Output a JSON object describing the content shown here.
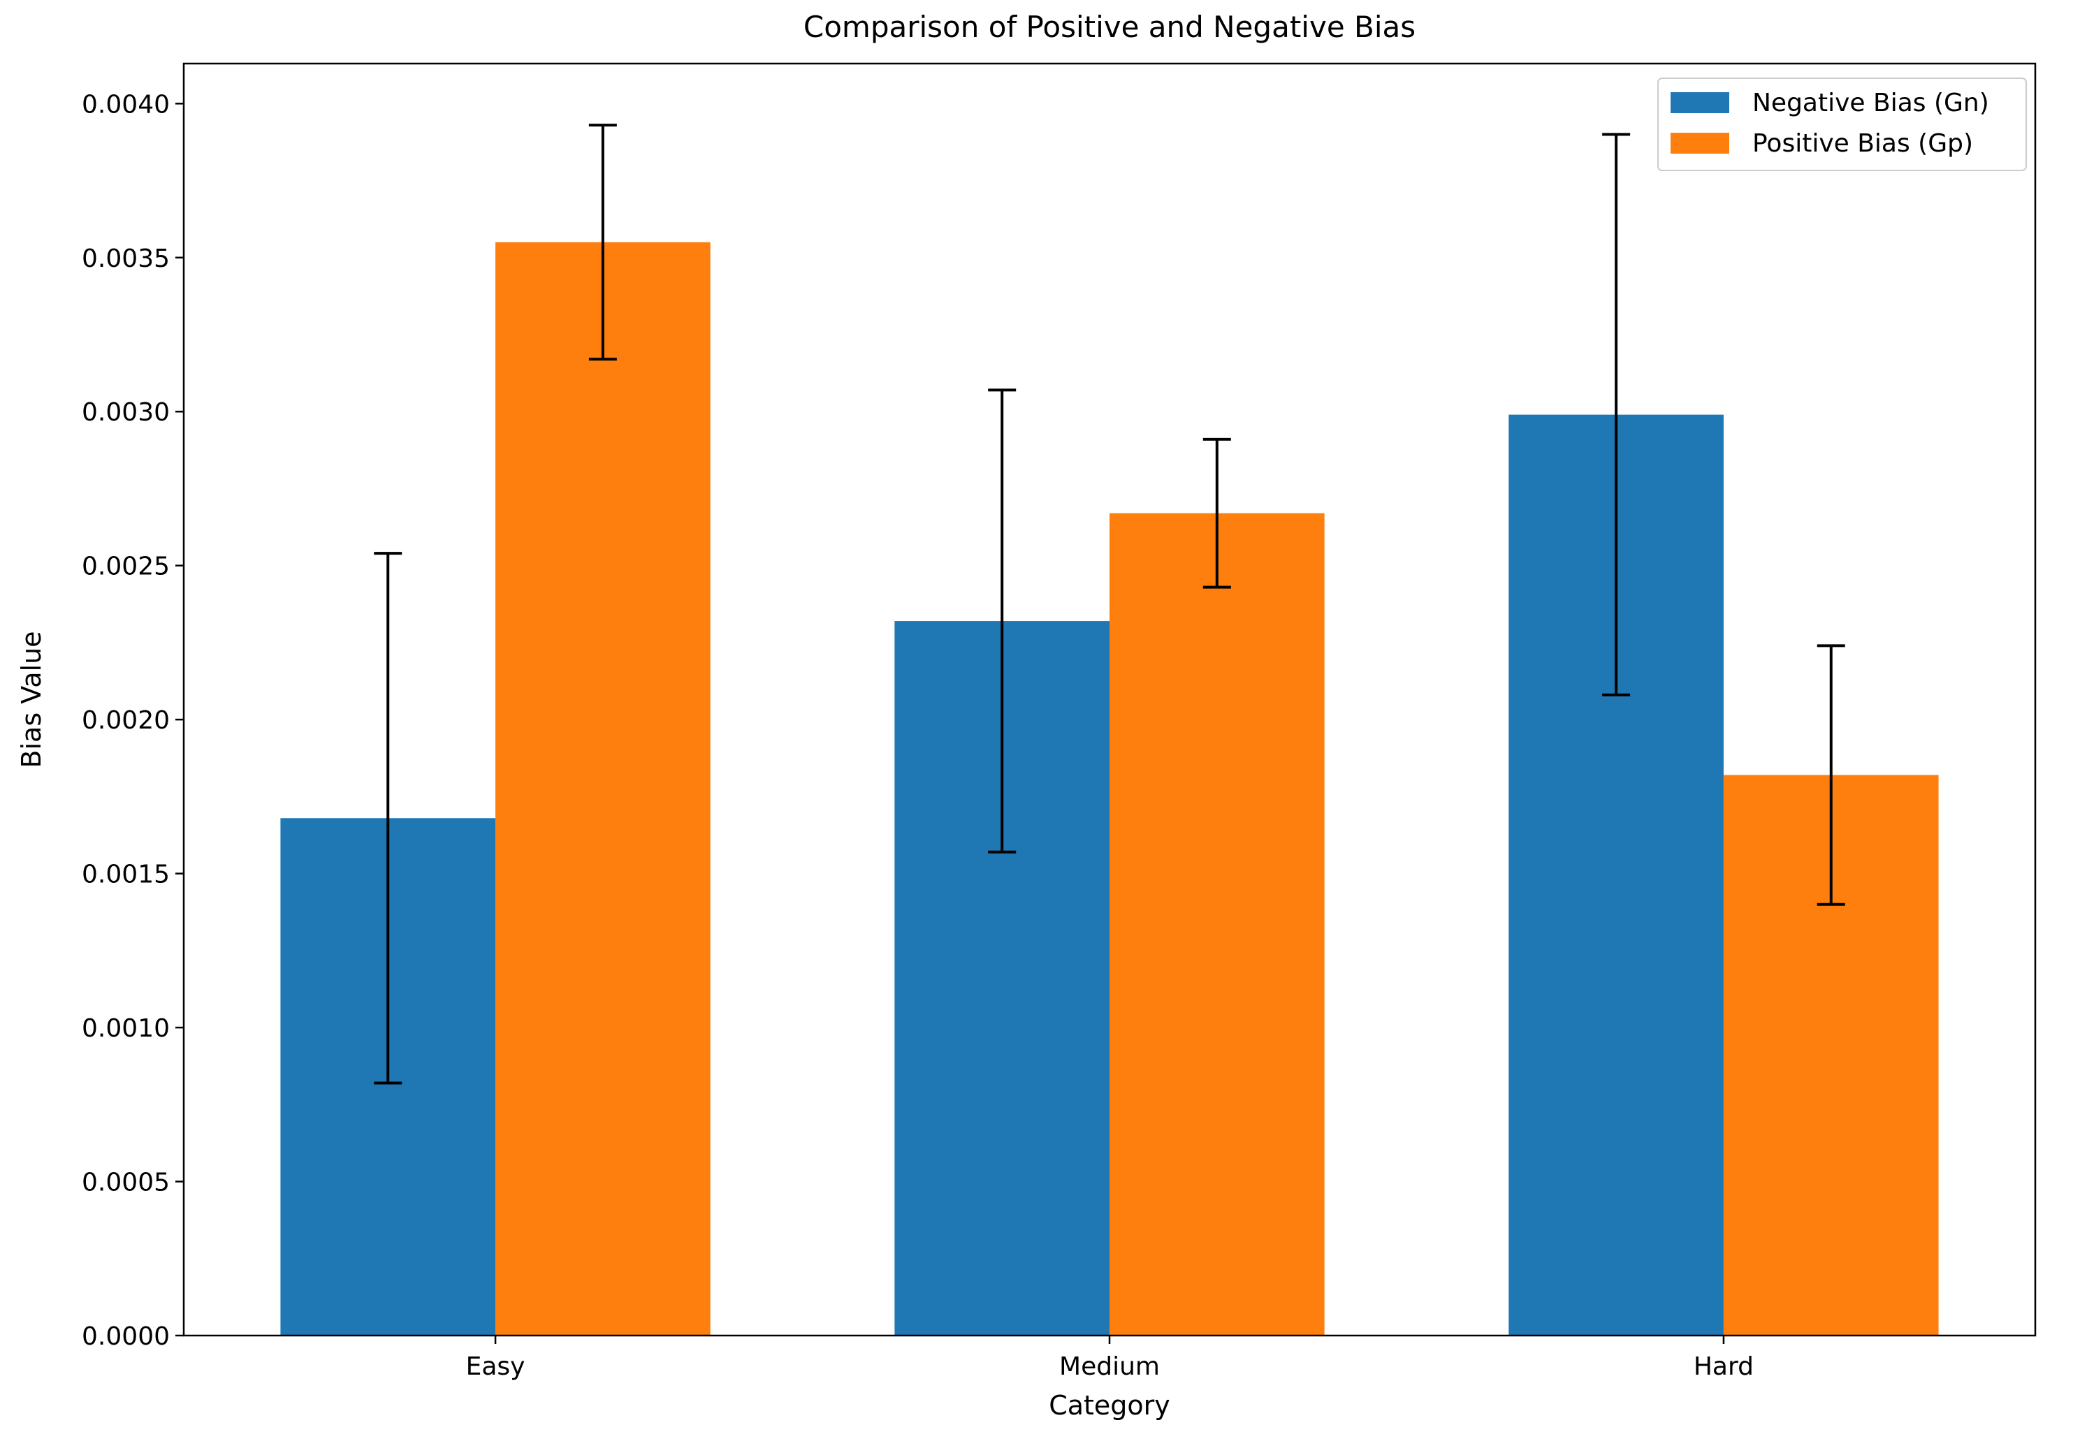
{
  "chart_data": {
    "type": "bar",
    "title": "Comparison of Positive and Negative Bias",
    "xlabel": "Category",
    "ylabel": "Bias Value",
    "categories": [
      "Easy",
      "Medium",
      "Hard"
    ],
    "ylim": [
      0,
      0.00413
    ],
    "yticks": [
      {
        "value": 0.0,
        "label": "0.0000"
      },
      {
        "value": 0.0005,
        "label": "0.0005"
      },
      {
        "value": 0.001,
        "label": "0.0010"
      },
      {
        "value": 0.0015,
        "label": "0.0015"
      },
      {
        "value": 0.002,
        "label": "0.0020"
      },
      {
        "value": 0.0025,
        "label": "0.0025"
      },
      {
        "value": 0.003,
        "label": "0.0030"
      },
      {
        "value": 0.0035,
        "label": "0.0035"
      },
      {
        "value": 0.004,
        "label": "0.0040"
      }
    ],
    "series": [
      {
        "name": "Negative Bias (Gn)",
        "color": "#1f77b4",
        "values": [
          0.00168,
          0.00232,
          0.00299
        ],
        "errors": [
          0.00086,
          0.00075,
          0.00091
        ]
      },
      {
        "name": "Positive Bias (Gp)",
        "color": "#ff7f0e",
        "values": [
          0.00355,
          0.00267,
          0.00182
        ],
        "errors": [
          0.00038,
          0.00024,
          0.00042
        ]
      }
    ],
    "error_bar_color": "#000000",
    "legend_position": "top-right",
    "grid": false
  }
}
